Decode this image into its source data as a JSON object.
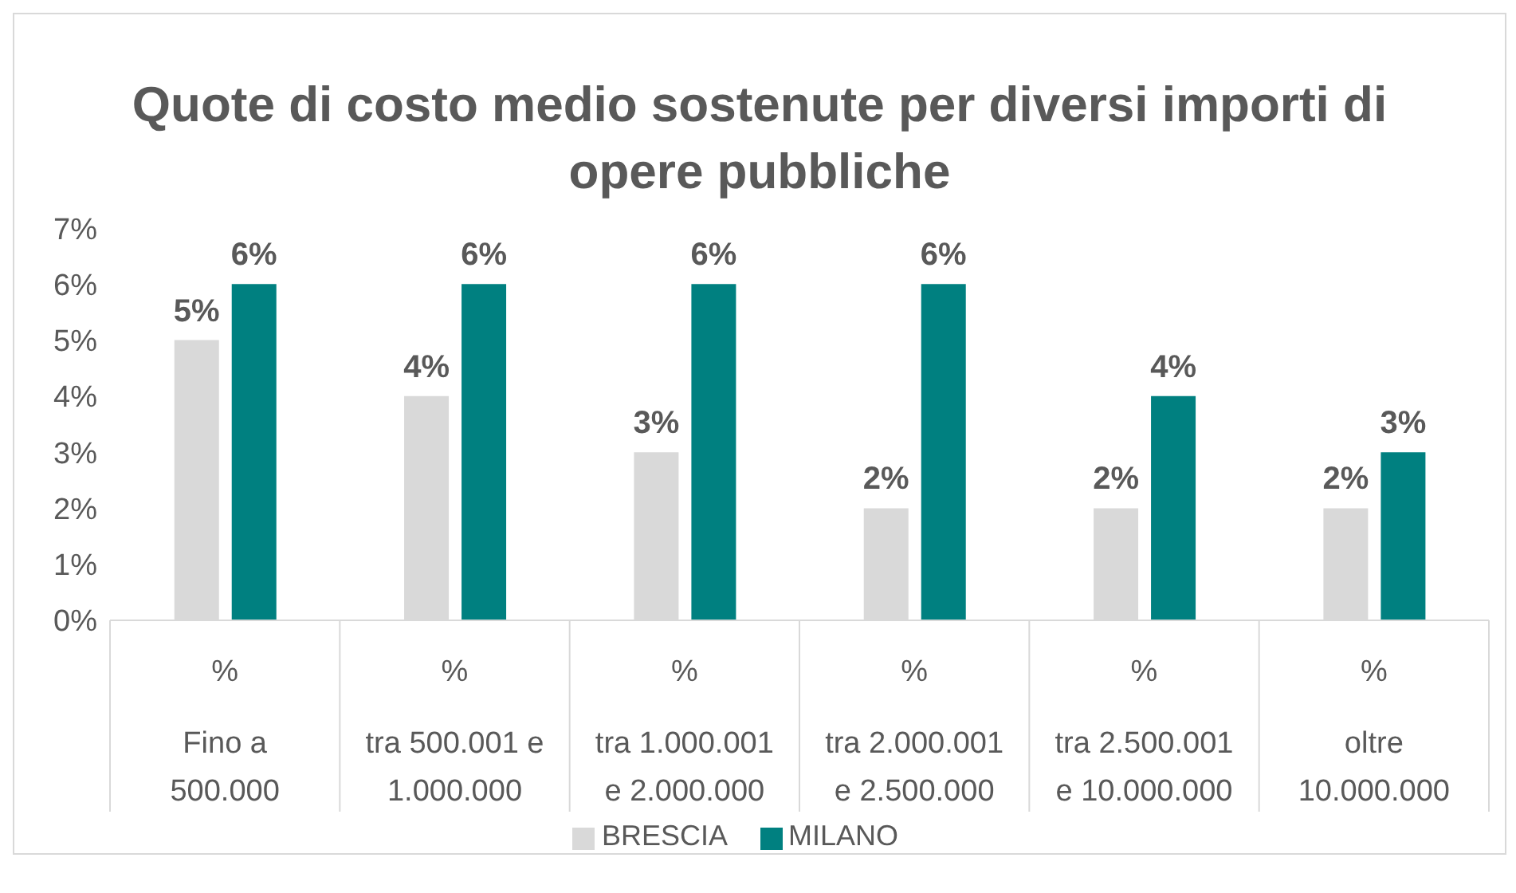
{
  "chart_data": {
    "type": "bar",
    "title": "Quote di costo medio sostenute per diversi importi di opere pubbliche",
    "categories": [
      "%\nFino a\n500.000",
      "%\ntra 500.001 e\n1.000.000",
      "%\ntra 1.000.001\ne 2.000.000",
      "%\ntra 2.000.001\ne 2.500.000",
      "%\ntra 2.500.001\ne 10.000.000",
      "%\noltre\n10.000.000"
    ],
    "series": [
      {
        "name": "BRESCIA",
        "color": "#d9d9d9",
        "values": [
          5,
          4,
          3,
          2,
          2,
          2
        ],
        "value_labels": [
          "5%",
          "4%",
          "3%",
          "2%",
          "2%",
          "2%"
        ]
      },
      {
        "name": "MILANO",
        "color": "#008080",
        "values": [
          6,
          6,
          6,
          6,
          4,
          3
        ],
        "value_labels": [
          "6%",
          "6%",
          "6%",
          "6%",
          "4%",
          "3%"
        ]
      }
    ],
    "ylim": [
      0,
      7
    ],
    "yticks": [
      {
        "value": 0,
        "label": "0%"
      },
      {
        "value": 1,
        "label": "1%"
      },
      {
        "value": 2,
        "label": "2%"
      },
      {
        "value": 3,
        "label": "3%"
      },
      {
        "value": 4,
        "label": "4%"
      },
      {
        "value": 5,
        "label": "5%"
      },
      {
        "value": 6,
        "label": "6%"
      },
      {
        "value": 7,
        "label": "7%"
      }
    ],
    "grid": false,
    "legend": "bottom"
  }
}
